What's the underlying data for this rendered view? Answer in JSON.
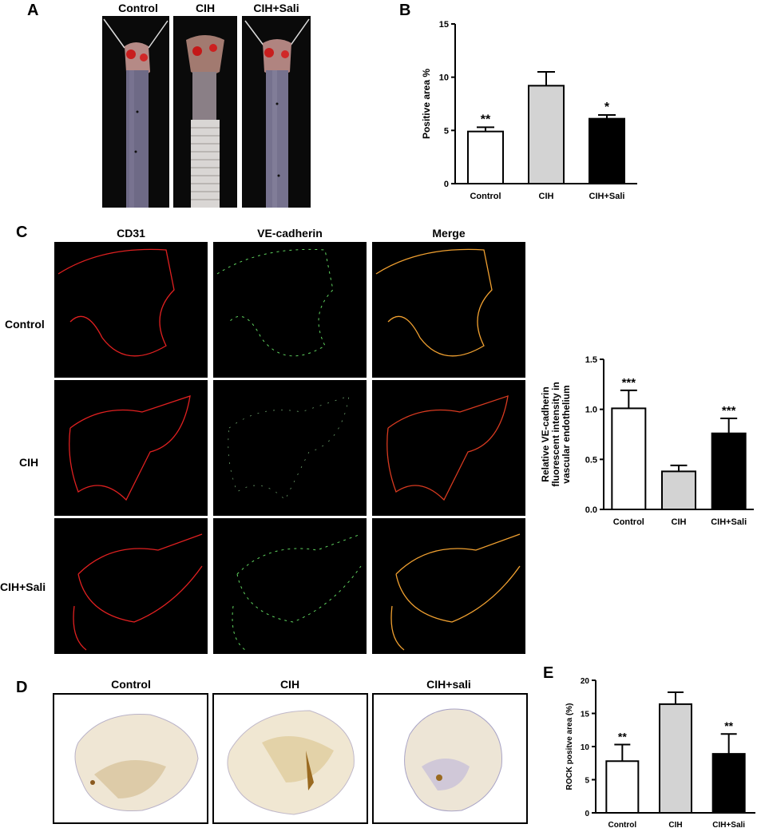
{
  "panels": {
    "A": {
      "label": "A",
      "columns": [
        "Control",
        "CIH",
        "CIH+Sali"
      ]
    },
    "B": {
      "label": "B"
    },
    "C": {
      "label": "C",
      "columns": [
        "CD31",
        "VE-cadherin",
        "Merge"
      ],
      "rows": [
        "Control",
        "CIH",
        "CIH+Sali"
      ]
    },
    "D": {
      "label": "D",
      "columns": [
        "Control",
        "CIH",
        "CIH+sali"
      ]
    },
    "E": {
      "label": "E"
    }
  },
  "colors": {
    "control": "#ffffff",
    "cih": "#d3d3d3",
    "cih_sali": "#000000",
    "cd31": "#e02020",
    "ve_cadherin": "#5fd35f",
    "merge": "#f0a030"
  },
  "chart_data": [
    {
      "id": "B",
      "type": "bar",
      "categories": [
        "Control",
        "CIH",
        "CIH+Sali"
      ],
      "values": [
        4.9,
        9.2,
        6.1
      ],
      "errors": [
        0.4,
        1.3,
        0.35
      ],
      "annotations": [
        "**",
        "",
        "*"
      ],
      "ylabel": "Positive area %",
      "ylim": [
        0,
        15
      ],
      "yticks": [
        0,
        5,
        10,
        15
      ],
      "ytick_labels": [
        "0",
        "5",
        "10",
        "15"
      ]
    },
    {
      "id": "C",
      "type": "bar",
      "categories": [
        "Control",
        "CIH",
        "CIH+Sali"
      ],
      "values": [
        1.01,
        0.38,
        0.76
      ],
      "errors": [
        0.18,
        0.06,
        0.15
      ],
      "annotations": [
        "***",
        "",
        "***"
      ],
      "ylabel": "Relative VE-cadherin fluorescent intensity in vascular endothelium",
      "ylabel_lines": [
        "Relative VE-cadherin",
        "fluorescent intensity in",
        "vascular endothelium"
      ],
      "ylim": [
        0,
        1.5
      ],
      "yticks": [
        0,
        0.5,
        1.0,
        1.5
      ],
      "ytick_labels": [
        "0.0",
        "0.5",
        "1.0",
        "1.5"
      ]
    },
    {
      "id": "E",
      "type": "bar",
      "categories": [
        "Control",
        "CIH",
        "CIH+Sali"
      ],
      "values": [
        7.8,
        16.4,
        8.9
      ],
      "errors": [
        2.5,
        1.8,
        3.0
      ],
      "annotations": [
        "**",
        "",
        "**"
      ],
      "ylabel": "ROCK positve area (%)",
      "ylim": [
        0,
        20
      ],
      "yticks": [
        0,
        5,
        10,
        15,
        20
      ],
      "ytick_labels": [
        "0",
        "5",
        "10",
        "15",
        "20"
      ]
    }
  ]
}
